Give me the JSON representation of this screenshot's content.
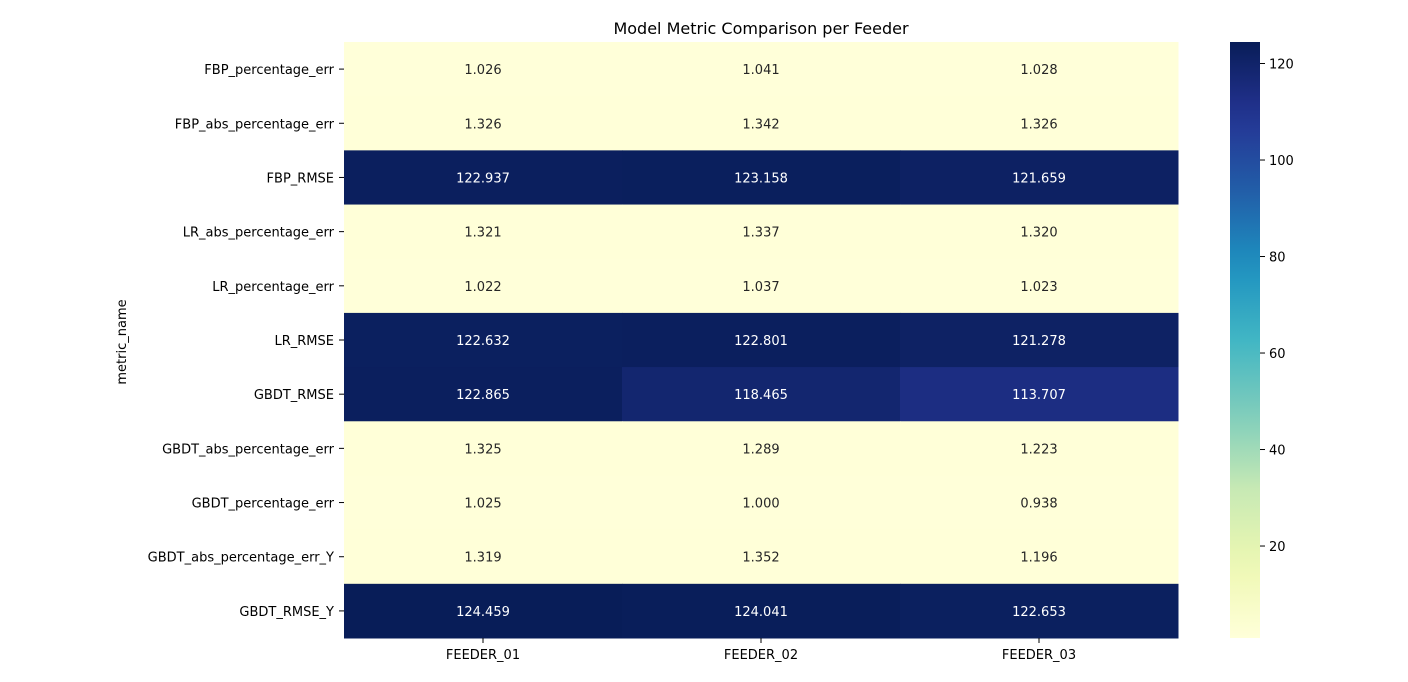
{
  "chart_data": {
    "type": "heatmap",
    "title": "Model Metric Comparison per Feeder",
    "ylabel": "metric_name",
    "xlabel": "",
    "columns": [
      "FEEDER_01",
      "FEEDER_02",
      "FEEDER_03"
    ],
    "rows": [
      {
        "name": "FBP_percentage_err",
        "values": [
          1.026,
          1.041,
          1.028
        ],
        "labels": [
          "1.026",
          "1.041",
          "1.028"
        ]
      },
      {
        "name": "FBP_abs_percentage_err",
        "values": [
          1.326,
          1.342,
          1.326
        ],
        "labels": [
          "1.326",
          "1.342",
          "1.326"
        ]
      },
      {
        "name": "FBP_RMSE",
        "values": [
          122.937,
          123.158,
          121.659
        ],
        "labels": [
          "122.937",
          "123.158",
          "121.659"
        ]
      },
      {
        "name": "LR_abs_percentage_err",
        "values": [
          1.321,
          1.337,
          1.32
        ],
        "labels": [
          "1.321",
          "1.337",
          "1.320"
        ]
      },
      {
        "name": "LR_percentage_err",
        "values": [
          1.022,
          1.037,
          1.023
        ],
        "labels": [
          "1.022",
          "1.037",
          "1.023"
        ]
      },
      {
        "name": "LR_RMSE",
        "values": [
          122.632,
          122.801,
          121.278
        ],
        "labels": [
          "122.632",
          "122.801",
          "121.278"
        ]
      },
      {
        "name": "GBDT_RMSE",
        "values": [
          122.865,
          118.465,
          113.707
        ],
        "labels": [
          "122.865",
          "118.465",
          "113.707"
        ]
      },
      {
        "name": "GBDT_abs_percentage_err",
        "values": [
          1.325,
          1.289,
          1.223
        ],
        "labels": [
          "1.325",
          "1.289",
          "1.223"
        ]
      },
      {
        "name": "GBDT_percentage_err",
        "values": [
          1.025,
          1.0,
          0.938
        ],
        "labels": [
          "1.025",
          "1.000",
          "0.938"
        ]
      },
      {
        "name": "GBDT_abs_percentage_err_Y",
        "values": [
          1.319,
          1.352,
          1.196
        ],
        "labels": [
          "1.319",
          "1.352",
          "1.196"
        ]
      },
      {
        "name": "GBDT_RMSE_Y",
        "values": [
          124.459,
          124.041,
          122.653
        ],
        "labels": [
          "124.459",
          "124.041",
          "122.653"
        ]
      }
    ],
    "colorbar": {
      "colormap": "YlGnBu",
      "range": [
        0.938,
        124.459
      ],
      "ticks": [
        20,
        40,
        60,
        80,
        100,
        120
      ],
      "tick_labels": [
        "20",
        "40",
        "60",
        "80",
        "100",
        "120"
      ]
    },
    "grid": false
  }
}
